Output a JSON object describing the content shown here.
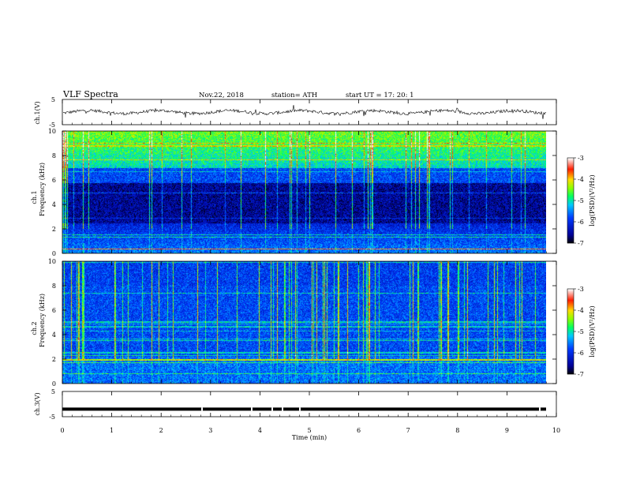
{
  "header": {
    "title": "VLF  Spectra",
    "date": "Nov.22, 2018",
    "station": "station= ATH",
    "start_ut": "start  UT  =    17: 20: 1"
  },
  "chart_data": [
    {
      "type": "line",
      "ylabel": "ch.1(V)",
      "ylim": [
        -5,
        5
      ],
      "yticks": [
        "5",
        "-5"
      ],
      "xlim": [
        0,
        10
      ],
      "series": [
        {
          "baseline": 0.0,
          "color": "#000000"
        }
      ]
    },
    {
      "type": "heatmap",
      "ylabel_top": "ch.1",
      "ylabel": "Frequency  (kHz)",
      "ylim": [
        0,
        10
      ],
      "yticks": [
        "0",
        "2",
        "4",
        "6",
        "8",
        "10"
      ],
      "colorbar": {
        "label": "log(PSD)(V²/Hz)",
        "ticks": [
          "-3",
          "-4",
          "-5",
          "-6",
          "-7"
        ],
        "range": [
          -7,
          -3
        ]
      }
    },
    {
      "type": "heatmap",
      "ylabel_top": "ch.2",
      "ylabel": "Frequency  (kHz)",
      "ylim": [
        0,
        10
      ],
      "yticks": [
        "0",
        "2",
        "4",
        "6",
        "8",
        "10"
      ],
      "colorbar": {
        "label": "log(PSD)(V²/Hz)",
        "ticks": [
          "-3",
          "-4",
          "-5",
          "-6",
          "-7"
        ],
        "range": [
          -7,
          -3
        ]
      }
    },
    {
      "type": "line",
      "ylabel": "ch.3(V)",
      "ylim": [
        -5,
        5
      ],
      "yticks": [
        "5",
        "-5"
      ],
      "series": [
        {
          "level": -2.0,
          "color": "#000000"
        }
      ]
    }
  ],
  "xaxis": {
    "label": "Time  (min)",
    "ticks": [
      "0",
      "1",
      "2",
      "3",
      "4",
      "5",
      "6",
      "7",
      "8",
      "9",
      "10"
    ],
    "range": [
      0,
      10
    ]
  }
}
